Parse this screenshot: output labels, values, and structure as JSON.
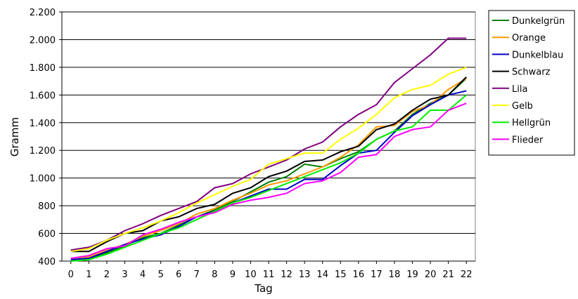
{
  "chart_data": {
    "type": "line",
    "x_label": "Tag",
    "y_label": "Gramm",
    "x": [
      0,
      1,
      2,
      3,
      4,
      5,
      6,
      7,
      8,
      9,
      10,
      11,
      12,
      13,
      14,
      15,
      16,
      17,
      18,
      19,
      20,
      21,
      22
    ],
    "xlim": [
      -0.5,
      22.5
    ],
    "xticks": [
      0,
      1,
      2,
      3,
      4,
      5,
      6,
      7,
      8,
      9,
      10,
      11,
      12,
      13,
      14,
      15,
      16,
      17,
      18,
      19,
      20,
      21,
      22
    ],
    "ylim": [
      400,
      2200
    ],
    "yticks": [
      400,
      600,
      800,
      {
        "value": 1000,
        "label": "1.000"
      },
      {
        "value": 1200,
        "label": "1.200"
      },
      {
        "value": 1400,
        "label": "1.400"
      },
      {
        "value": 1600,
        "label": "1.600"
      },
      {
        "value": 1800,
        "label": "1.800"
      },
      {
        "value": 2000,
        "label": "2.000"
      },
      {
        "value": 2200,
        "label": "2.200"
      }
    ],
    "grid": true,
    "legend": "right",
    "series": [
      {
        "name": "Dunkelgrün",
        "color": "#008000",
        "values": [
          420,
          420,
          460,
          510,
          570,
          600,
          660,
          720,
          770,
          830,
          900,
          970,
          1010,
          1100,
          1080,
          1140,
          1190,
          1280,
          1340,
          1460,
          1540,
          1600,
          1720
        ]
      },
      {
        "name": "Orange",
        "color": "#ff9900",
        "values": [
          420,
          430,
          480,
          520,
          580,
          620,
          670,
          740,
          780,
          840,
          890,
          950,
          980,
          1030,
          1080,
          1150,
          1240,
          1370,
          1380,
          1480,
          1530,
          1640,
          1720
        ]
      },
      {
        "name": "Dunkelblau",
        "color": "#0000cc",
        "values": [
          410,
          420,
          470,
          520,
          560,
          590,
          650,
          720,
          760,
          820,
          870,
          920,
          920,
          990,
          990,
          1090,
          1180,
          1200,
          1330,
          1450,
          1530,
          1600,
          1630
        ]
      },
      {
        "name": "Schwarz",
        "color": "#000000",
        "values": [
          470,
          470,
          540,
          600,
          620,
          690,
          720,
          780,
          810,
          890,
          930,
          1010,
          1050,
          1120,
          1130,
          1190,
          1230,
          1350,
          1390,
          1490,
          1570,
          1600,
          1730
        ]
      },
      {
        "name": "Lila",
        "color": "#800080",
        "values": [
          480,
          500,
          550,
          620,
          670,
          730,
          780,
          830,
          930,
          960,
          1030,
          1080,
          1130,
          1210,
          1260,
          1370,
          1460,
          1530,
          1690,
          1790,
          1890,
          2010,
          2010
        ]
      },
      {
        "name": "Gelb",
        "color": "#ffff00",
        "values": [
          470,
          490,
          550,
          600,
          640,
          690,
          750,
          820,
          880,
          940,
          990,
          1100,
          1140,
          1180,
          1180,
          1280,
          1360,
          1460,
          1580,
          1640,
          1670,
          1750,
          1800
        ]
      },
      {
        "name": "Hellgrün",
        "color": "#00ee00",
        "values": [
          400,
          410,
          450,
          500,
          550,
          600,
          640,
          700,
          760,
          820,
          860,
          910,
          960,
          1010,
          1060,
          1110,
          1180,
          1280,
          1340,
          1370,
          1490,
          1490,
          1600
        ]
      },
      {
        "name": "Flieder",
        "color": "#ff00ff",
        "values": [
          420,
          440,
          490,
          510,
          590,
          630,
          680,
          720,
          750,
          810,
          840,
          860,
          890,
          960,
          980,
          1040,
          1150,
          1170,
          1300,
          1350,
          1370,
          1490,
          1540
        ]
      }
    ]
  }
}
